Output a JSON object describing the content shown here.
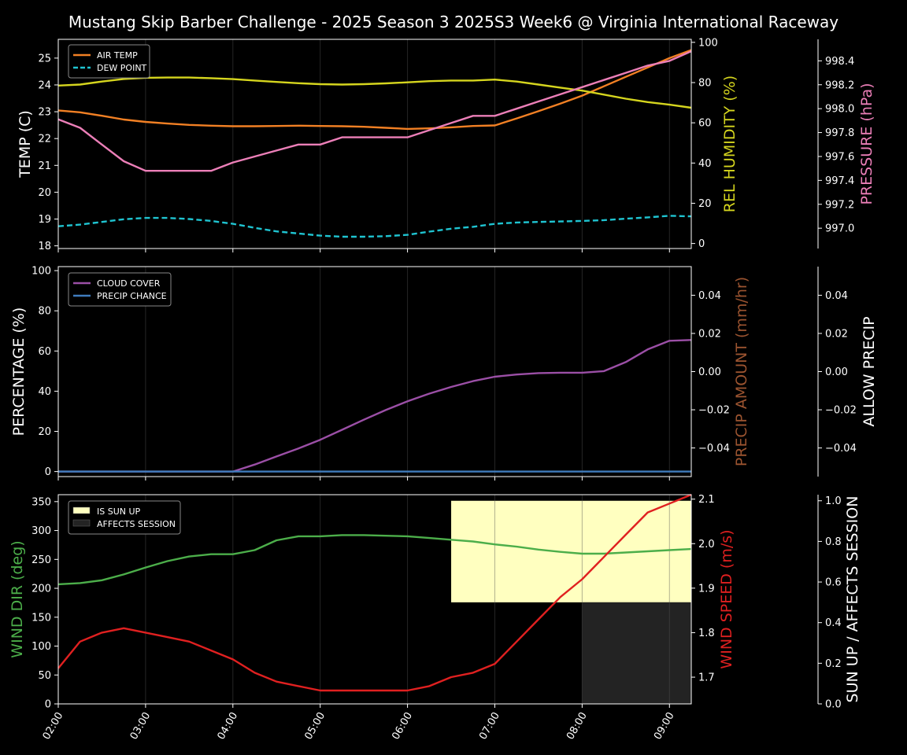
{
  "title": "Mustang Skip Barber  Challenge - 2025 Season 3 2025S3 Week6 @ Virginia International Raceway",
  "colors": {
    "background": "#000000",
    "air_temp": "#f28024",
    "dew_point": "#1fc4d1",
    "humidity": "#d5d51e",
    "pressure": "#ec7fb8",
    "cloud": "#9b4fa6",
    "precip_chance": "#3f7cbd",
    "precip_amount_label": "#9c5430",
    "wind_dir": "#4cae4a",
    "wind_speed": "#e02020",
    "sun_up": "#ffffc0",
    "affects_session": "#232323"
  },
  "chart_data": [
    {
      "type": "line",
      "panel": "temperature",
      "x": [
        "02:00",
        "02:15",
        "02:30",
        "02:45",
        "03:00",
        "03:15",
        "03:30",
        "03:45",
        "04:00",
        "04:15",
        "04:30",
        "04:45",
        "05:00",
        "05:15",
        "05:30",
        "05:45",
        "06:00",
        "06:15",
        "06:30",
        "06:45",
        "07:00",
        "07:15",
        "07:30",
        "07:45",
        "08:00",
        "08:15",
        "08:30",
        "08:45",
        "09:00",
        "09:15"
      ],
      "xticks": [
        "02:00",
        "03:00",
        "04:00",
        "05:00",
        "06:00",
        "07:00",
        "08:00",
        "09:00"
      ],
      "ylabel": "TEMP (C)",
      "ylim": [
        17.9,
        25.7
      ],
      "yticks": [
        18,
        19,
        20,
        21,
        22,
        23,
        24,
        25
      ],
      "y2label": "REL HUMIDITY (%)",
      "y2lim": [
        -2.5,
        101.5
      ],
      "y2ticks": [
        0,
        20,
        40,
        60,
        80,
        100
      ],
      "y3label": "PRESSURE (hPa)",
      "y3lim": [
        996.83,
        998.58
      ],
      "y3ticks": [
        "997.0",
        "997.2",
        "997.4",
        "997.6",
        "997.8",
        "998.0",
        "998.2",
        "998.4"
      ],
      "legend": "top-left",
      "series": [
        {
          "name": "AIR TEMP",
          "axis": "left",
          "style": "solid",
          "values": [
            23.05,
            22.98,
            22.85,
            22.71,
            22.62,
            22.56,
            22.51,
            22.48,
            22.46,
            22.46,
            22.47,
            22.48,
            22.47,
            22.46,
            22.44,
            22.4,
            22.36,
            22.38,
            22.42,
            22.47,
            22.49,
            22.75,
            23.02,
            23.3,
            23.6,
            23.95,
            24.3,
            24.65,
            25.0,
            25.3
          ]
        },
        {
          "name": "DEW POINT",
          "axis": "left",
          "style": "dashed",
          "values": [
            18.73,
            18.79,
            18.89,
            18.99,
            19.04,
            19.04,
            19.0,
            18.93,
            18.82,
            18.67,
            18.54,
            18.46,
            18.38,
            18.34,
            18.34,
            18.36,
            18.41,
            18.53,
            18.64,
            18.71,
            18.82,
            18.87,
            18.89,
            18.91,
            18.93,
            18.96,
            19.01,
            19.06,
            19.12,
            19.1
          ]
        },
        {
          "name": "REL HUMIDITY",
          "axis": "right",
          "style": "solid",
          "values": [
            78.5,
            79,
            80.5,
            81.8,
            82.4,
            82.5,
            82.5,
            82.2,
            81.7,
            81,
            80.3,
            79.7,
            79.2,
            79,
            79.2,
            79.6,
            80.1,
            80.7,
            81,
            81,
            81.5,
            80.5,
            79,
            77.5,
            76,
            74,
            72,
            70.3,
            69,
            67.5
          ]
        },
        {
          "name": "PRESSURE",
          "axis": "outer-right",
          "style": "solid",
          "values": [
            997.91,
            997.84,
            997.7,
            997.56,
            997.48,
            997.48,
            997.48,
            997.48,
            997.55,
            997.6,
            997.65,
            997.7,
            997.7,
            997.76,
            997.76,
            997.76,
            997.76,
            997.82,
            997.88,
            997.94,
            997.94,
            998.0,
            998.06,
            998.12,
            998.18,
            998.24,
            998.3,
            998.36,
            998.4,
            998.48
          ]
        }
      ]
    },
    {
      "type": "line",
      "panel": "precipitation",
      "x": [
        "02:00",
        "02:15",
        "02:30",
        "02:45",
        "03:00",
        "03:15",
        "03:30",
        "03:45",
        "04:00",
        "04:15",
        "04:30",
        "04:45",
        "05:00",
        "05:15",
        "05:30",
        "05:45",
        "06:00",
        "06:15",
        "06:30",
        "06:45",
        "07:00",
        "07:15",
        "07:30",
        "07:45",
        "08:00",
        "08:15",
        "08:30",
        "08:45",
        "09:00",
        "09:15"
      ],
      "ylabel": "PERCENTAGE (%)",
      "ylim": [
        -2.5,
        102
      ],
      "yticks": [
        0,
        20,
        40,
        60,
        80,
        100
      ],
      "y2label": "PRECIP AMOUNT (mm/hr)",
      "y2lim": [
        -0.055,
        0.055
      ],
      "y2ticks": [
        "−0.04",
        "−0.02",
        "0.00",
        "0.02",
        "0.04"
      ],
      "y3label": "ALLOW PRECIP",
      "y3ticks": [
        "−0.04",
        "−0.02",
        "0.00",
        "0.02",
        "0.04"
      ],
      "legend": "top-left",
      "series": [
        {
          "name": "CLOUD COVER",
          "axis": "left",
          "values": [
            0,
            0,
            0,
            0,
            0,
            0,
            0,
            0,
            0,
            3.5,
            7.5,
            11.5,
            15.8,
            20.8,
            25.8,
            30.6,
            35,
            38.8,
            42.1,
            45,
            47.2,
            48.3,
            49,
            49.2,
            49.2,
            50,
            54.5,
            60.8,
            65.1,
            65.5
          ]
        },
        {
          "name": "PRECIP CHANCE",
          "axis": "left",
          "values": [
            0,
            0,
            0,
            0,
            0,
            0,
            0,
            0,
            0,
            0,
            0,
            0,
            0,
            0,
            0,
            0,
            0,
            0,
            0,
            0,
            0,
            0,
            0,
            0,
            0,
            0,
            0,
            0,
            0,
            0
          ]
        }
      ]
    },
    {
      "type": "line",
      "panel": "wind",
      "x": [
        "02:00",
        "02:15",
        "02:30",
        "02:45",
        "03:00",
        "03:15",
        "03:30",
        "03:45",
        "04:00",
        "04:15",
        "04:30",
        "04:45",
        "05:00",
        "05:15",
        "05:30",
        "05:45",
        "06:00",
        "06:15",
        "06:30",
        "06:45",
        "07:00",
        "07:15",
        "07:30",
        "07:45",
        "08:00",
        "08:15",
        "08:30",
        "08:45",
        "09:00",
        "09:15"
      ],
      "xticks": [
        "02:00",
        "03:00",
        "04:00",
        "05:00",
        "06:00",
        "07:00",
        "08:00",
        "09:00"
      ],
      "ylabel": "WIND DIR (deg)",
      "ylim": [
        0,
        362
      ],
      "yticks": [
        0,
        50,
        100,
        150,
        200,
        250,
        300,
        350
      ],
      "y2label": "WIND SPEED (m/s)",
      "y2lim": [
        1.64,
        2.11
      ],
      "y2ticks": [
        "1.7",
        "1.8",
        "1.9",
        "2.0",
        "2.1"
      ],
      "y3label": "SUN UP / AFFECTS SESSION",
      "y3lim": [
        0,
        1.03
      ],
      "y3ticks": [
        "0.0",
        "0.2",
        "0.4",
        "0.6",
        "0.8",
        "1.0"
      ],
      "legend": "top-left",
      "series": [
        {
          "name": "WIND DIR",
          "axis": "left",
          "values": [
            207,
            209,
            214,
            224,
            236,
            247,
            255,
            259,
            259,
            266,
            283,
            290,
            290,
            292,
            292,
            291,
            290,
            287,
            284,
            281,
            276,
            272,
            267,
            263,
            260,
            260,
            262,
            264,
            266,
            268
          ]
        },
        {
          "name": "WIND SPEED",
          "axis": "right",
          "values": [
            1.72,
            1.78,
            1.8,
            1.81,
            1.8,
            1.79,
            1.78,
            1.76,
            1.74,
            1.71,
            1.69,
            1.68,
            1.67,
            1.67,
            1.67,
            1.67,
            1.67,
            1.68,
            1.7,
            1.71,
            1.73,
            1.78,
            1.83,
            1.88,
            1.92,
            1.97,
            2.02,
            2.07,
            2.09,
            2.11
          ]
        }
      ],
      "sun_up": {
        "name": "IS SUN UP",
        "from": "06:30",
        "to": "09:15",
        "value": 1
      },
      "affects_session": {
        "name": "AFFECTS SESSION",
        "from": "08:00",
        "to": "09:15",
        "value": 0.5
      }
    }
  ]
}
